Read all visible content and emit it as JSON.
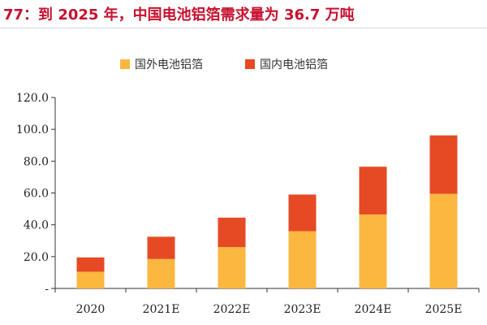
{
  "header": {
    "title": "77：到 2025 年，中国电池铝箔需求量为 36.7 万吨"
  },
  "colors": {
    "title": "#c8102e",
    "series_foreign": "#fbb73f",
    "series_domestic": "#e64a25",
    "axis": "#333333"
  },
  "chart_data": {
    "type": "bar",
    "stacked": true,
    "title": "",
    "xlabel": "",
    "ylabel": "",
    "categories": [
      "2020",
      "2021E",
      "2022E",
      "2023E",
      "2024E",
      "2025E"
    ],
    "series": [
      {
        "name": "国外电池铝箔",
        "values": [
          10.5,
          18.5,
          26.0,
          36.0,
          46.5,
          59.5
        ]
      },
      {
        "name": "国内电池铝箔",
        "values": [
          9.0,
          14.0,
          18.5,
          23.0,
          30.0,
          36.7
        ]
      }
    ],
    "ylim": [
      0,
      120
    ],
    "yticks": [
      "-",
      "20.0",
      "40.0",
      "60.0",
      "80.0",
      "100.0",
      "120.0"
    ],
    "legend_position": "top-center",
    "grid": false
  }
}
